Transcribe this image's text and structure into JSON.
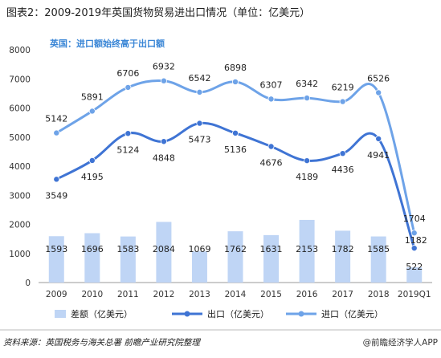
{
  "chart_data": {
    "type": "bar+line",
    "title": "图表2：2009-2019年英国货物贸易进出口情况（单位：亿美元）",
    "annotation": "英国：进口额始终高于出口额",
    "categories": [
      "2009",
      "2010",
      "2011",
      "2012",
      "2013",
      "2014",
      "2015",
      "2016",
      "2017",
      "2018",
      "2019Q1"
    ],
    "ylim": [
      0,
      8000
    ],
    "yticks": [
      0,
      1000,
      2000,
      3000,
      4000,
      5000,
      6000,
      7000,
      8000
    ],
    "grid": false,
    "legend_position": "bottom",
    "series": [
      {
        "name": "差额（亿美元）",
        "kind": "bar",
        "color": "#bfd5f5",
        "values": [
          1593,
          1696,
          1583,
          2084,
          1069,
          1762,
          1631,
          2153,
          1782,
          1585,
          522
        ]
      },
      {
        "name": "出口（亿美元）",
        "kind": "line",
        "color": "#3f74d4",
        "values": [
          3549,
          4195,
          5124,
          4848,
          5473,
          5136,
          4676,
          4189,
          4436,
          4941,
          1182
        ]
      },
      {
        "name": "进口（亿美元）",
        "kind": "line",
        "color": "#6ea3e8",
        "values": [
          5142,
          5891,
          6706,
          6932,
          6542,
          6898,
          6307,
          6342,
          6219,
          6526,
          1704
        ]
      }
    ]
  },
  "footer": {
    "source": "资料来源：英国税务与海关总署 前瞻产业研究院整理",
    "brand": "@前瞻经济学人APP"
  }
}
